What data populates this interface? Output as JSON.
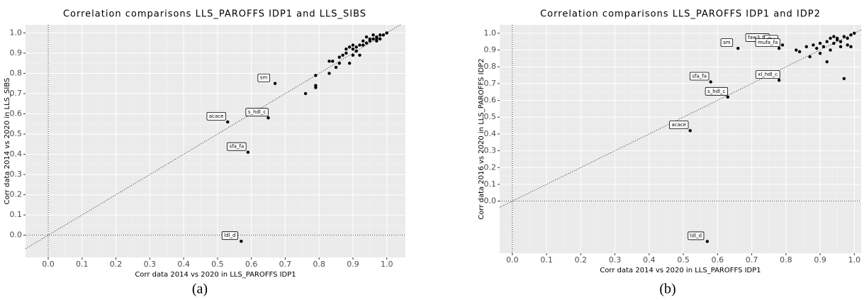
{
  "chart_data": [
    {
      "type": "scatter",
      "title": "Correlation comparisons LLS_PAROFFS IDP1 and LLS_SIBS",
      "x_label": "Corr data 2014 vs 2020 in LLS_PAROFFS IDP1",
      "y_label": "Corr data 2014 vs 2020 in LLS_SIBS",
      "caption": "(a)",
      "color": "#000000",
      "grid": true,
      "diagonal": true,
      "xlim": [
        -0.067,
        1.055
      ],
      "ylim": [
        -0.11,
        1.04
      ],
      "xticks": [
        {
          "value": 0,
          "label": "0.0"
        },
        0.1,
        0.2,
        0.3,
        0.4,
        0.5,
        0.6,
        0.7,
        0.8,
        0.9,
        {
          "value": 1,
          "label": "1.0"
        }
      ],
      "yticks": [
        {
          "value": 0,
          "label": "0.0"
        },
        0.1,
        0.2,
        0.3,
        0.4,
        0.5,
        0.6,
        0.7,
        0.8,
        0.9,
        {
          "value": 1,
          "label": "1.0"
        }
      ],
      "x": [
        0.67,
        0.53,
        0.65,
        0.59,
        0.57,
        0.76,
        0.79,
        0.79,
        0.79,
        0.83,
        0.84,
        0.83,
        0.85,
        0.86,
        0.86,
        0.87,
        0.88,
        0.89,
        0.89,
        0.9,
        0.9,
        0.91,
        0.91,
        0.92,
        0.92,
        0.93,
        0.94,
        0.95,
        0.95,
        0.96,
        0.96,
        0.97,
        0.97,
        0.98,
        0.98,
        0.99,
        1.0,
        0.88,
        0.9,
        0.93,
        0.94,
        0.97
      ],
      "values": [
        0.75,
        0.56,
        0.58,
        0.41,
        -0.03,
        0.7,
        0.73,
        0.74,
        0.79,
        0.86,
        0.86,
        0.8,
        0.83,
        0.88,
        0.85,
        0.89,
        0.9,
        0.93,
        0.85,
        0.92,
        0.89,
        0.93,
        0.91,
        0.89,
        0.94,
        0.96,
        0.95,
        0.97,
        0.96,
        0.97,
        0.99,
        0.98,
        0.96,
        0.99,
        0.97,
        0.99,
        1.0,
        0.92,
        0.94,
        0.94,
        0.98,
        0.97
      ],
      "point_labels": [
        "sm",
        "acace",
        "s_hdl_c",
        "sfa_fa",
        "ldl_d",
        null,
        null,
        null,
        null,
        null,
        null,
        null,
        null,
        null,
        null,
        null,
        null,
        null,
        null,
        null,
        null,
        null,
        null,
        null,
        null,
        null,
        null,
        null,
        null,
        null,
        null,
        null,
        null,
        null,
        null,
        null,
        null,
        null,
        null,
        null,
        null,
        null
      ]
    },
    {
      "type": "scatter",
      "title": "Correlation comparisons LLS_PAROFFS IDP1 and IDP2",
      "x_label": "Corr data 2014 vs 2020 in LLS_PAROFFS IDP1",
      "y_label": "Corr data 2016 vs 2020 in LLS_PAROFFS IDP2",
      "caption": "(b)",
      "color": "#000000",
      "grid": true,
      "diagonal": true,
      "xlim": [
        -0.037,
        1.02
      ],
      "ylim": [
        -0.31,
        1.05
      ],
      "xticks": [
        {
          "value": 0,
          "label": "0.0"
        },
        0.1,
        0.2,
        0.3,
        0.4,
        0.5,
        0.6,
        0.7,
        0.8,
        0.9,
        {
          "value": 1,
          "label": "1.0"
        }
      ],
      "yticks": [
        {
          "value": 0,
          "label": "0.0"
        },
        0.1,
        0.2,
        0.3,
        0.4,
        0.5,
        0.6,
        0.7,
        0.8,
        0.9,
        {
          "value": 1,
          "label": "1.0"
        }
      ],
      "x": [
        0.75,
        0.79,
        0.78,
        0.66,
        0.58,
        0.78,
        0.63,
        0.52,
        0.57,
        0.83,
        0.84,
        0.86,
        0.87,
        0.88,
        0.89,
        0.9,
        0.9,
        0.91,
        0.92,
        0.92,
        0.93,
        0.93,
        0.94,
        0.95,
        0.95,
        0.96,
        0.97,
        0.97,
        0.98,
        0.98,
        0.99,
        0.99,
        1.0,
        0.96,
        0.94
      ],
      "values": [
        0.94,
        0.93,
        0.91,
        0.91,
        0.71,
        0.72,
        0.62,
        0.42,
        -0.24,
        0.9,
        0.89,
        0.92,
        0.86,
        0.93,
        0.91,
        0.94,
        0.88,
        0.92,
        0.95,
        0.83,
        0.97,
        0.9,
        0.94,
        0.96,
        0.97,
        0.95,
        0.98,
        0.73,
        0.97,
        0.93,
        0.99,
        0.92,
        1.0,
        0.92,
        0.98
      ],
      "point_labels": [
        "faw3_fa",
        "dha",
        "mufa_fa",
        "sm",
        "sfa_fa",
        "xl_hdl_c",
        "s_hdl_c",
        "acace",
        "ldl_d",
        null,
        null,
        null,
        null,
        null,
        null,
        null,
        null,
        null,
        null,
        null,
        null,
        null,
        null,
        null,
        null,
        null,
        null,
        null,
        null,
        null,
        null,
        null,
        null,
        null,
        null
      ]
    }
  ]
}
